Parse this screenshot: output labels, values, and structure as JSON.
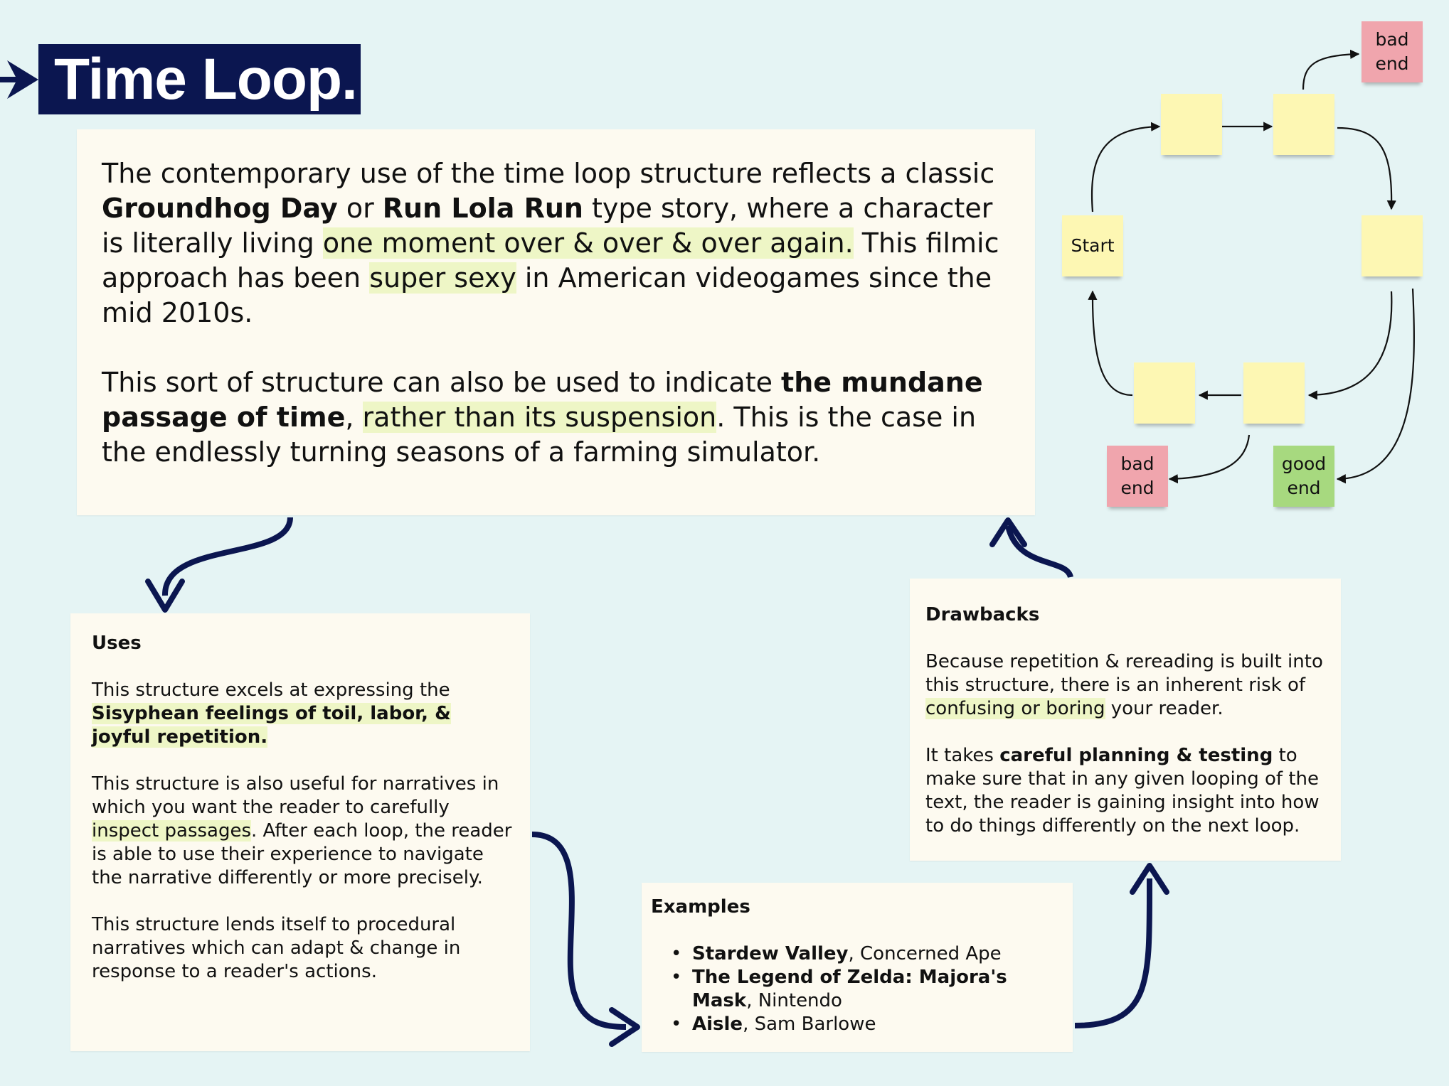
{
  "title": "Time Loop.",
  "intro": {
    "p1": {
      "t1": "The contemporary use of the time loop structure reflects a classic ",
      "b1": "Groundhog Day",
      "t2": " or ",
      "b2": "Run Lola Run",
      "t3": " type story, where a character is literally living ",
      "h1": "one moment over & over & over again.",
      "t4": " This filmic approach has been ",
      "h2": "super sexy",
      "t5": " in American videogames since the mid 2010s."
    },
    "p2": {
      "t1": "This sort of structure can also be used to indicate ",
      "b1": "the mundane passage of time",
      "t2": ", ",
      "h1": "rather than its suspension",
      "t3": ". This is the case in the endlessly turning seasons of a farming simulator."
    }
  },
  "uses": {
    "heading": "Uses",
    "p1": {
      "t1": "This structure excels at expressing the ",
      "hb": "Sisyphean feelings of toil, labor, & joyful repetition."
    },
    "p2": {
      "t1": "This structure is also useful for narratives in which you want the reader to carefully ",
      "h1": "inspect passages",
      "t2": ". After each loop, the reader is able to use their experience to navigate the narrative differently or more precisely."
    },
    "p3": "This structure lends itself to procedural narratives which can adapt & change in response to a reader's actions."
  },
  "drawbacks": {
    "heading": "Drawbacks",
    "p1": {
      "t1": "Because repetition & rereading is built into this structure, there is an inherent risk of ",
      "h1": "confusing or boring",
      "t2": " your reader."
    },
    "p2": {
      "t1": "It takes ",
      "b1": "careful planning & testing",
      "t2": " to make sure that in any given looping of the text, the reader is gaining insight into how to do things differently on the next loop."
    }
  },
  "examples": {
    "heading": "Examples",
    "items": [
      {
        "title": "Stardew Valley",
        "author": ", Concerned Ape"
      },
      {
        "title": "The Legend of Zelda: Majora's Mask",
        "author": ", Nintendo"
      },
      {
        "title": "Aisle",
        "author": ", Sam Barlowe"
      }
    ]
  },
  "diagram": {
    "start_label": "Start",
    "bad_end_top": "bad end",
    "bad_end_bottom": "bad end",
    "good_end": "good end"
  },
  "colors": {
    "navy": "#0b1650",
    "background": "#e5f4f4",
    "card": "#fdfaf0",
    "highlight": "#eef6c6",
    "sticky_yellow": "#fdf7b3",
    "sticky_red": "#f0a5ad",
    "sticky_green": "#a7d97f"
  }
}
